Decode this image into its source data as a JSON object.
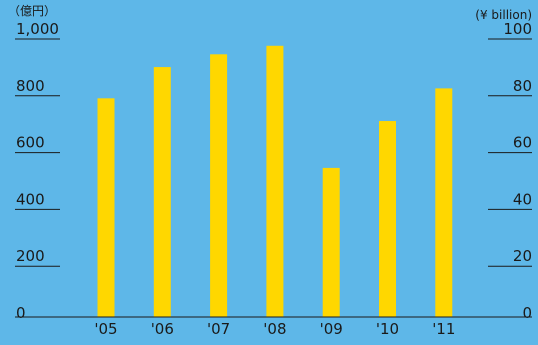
{
  "chart_data": {
    "type": "bar",
    "left_unit": "（億円）",
    "right_unit": "(¥ billion)",
    "categories": [
      "'05",
      "'06",
      "'07",
      "'08",
      "'09",
      "'10",
      "'11"
    ],
    "values": [
      770,
      880,
      925,
      955,
      525,
      690,
      805
    ],
    "ylim": [
      0,
      1000
    ],
    "left_ticks": [
      "0",
      "200",
      "400",
      "600",
      "800",
      "1,000"
    ],
    "right_ticks": [
      "0",
      "20",
      "40",
      "60",
      "80",
      "100"
    ],
    "bar_color": "#ffd700",
    "background_color": "#5eb7e8",
    "grid": false,
    "legend": "none"
  }
}
